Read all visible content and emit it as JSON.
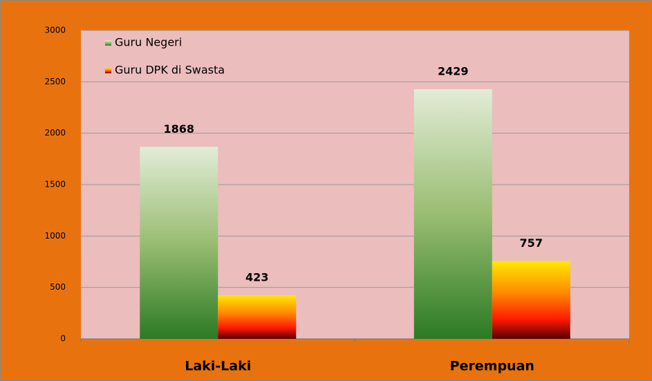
{
  "chart_data": {
    "type": "bar",
    "categories": [
      "Laki-Laki",
      "Perempuan"
    ],
    "series": [
      {
        "name": "Guru Negeri",
        "color": "#2b7a24",
        "values": [
          1868,
          2429
        ]
      },
      {
        "name": "Guru DPK di Swasta",
        "color": "#ff1a00",
        "values": [
          423,
          757
        ]
      }
    ],
    "ylim": [
      0,
      3000
    ],
    "yticks": [
      0,
      500,
      1000,
      1500,
      2000,
      2500,
      3000
    ],
    "grid": true
  }
}
